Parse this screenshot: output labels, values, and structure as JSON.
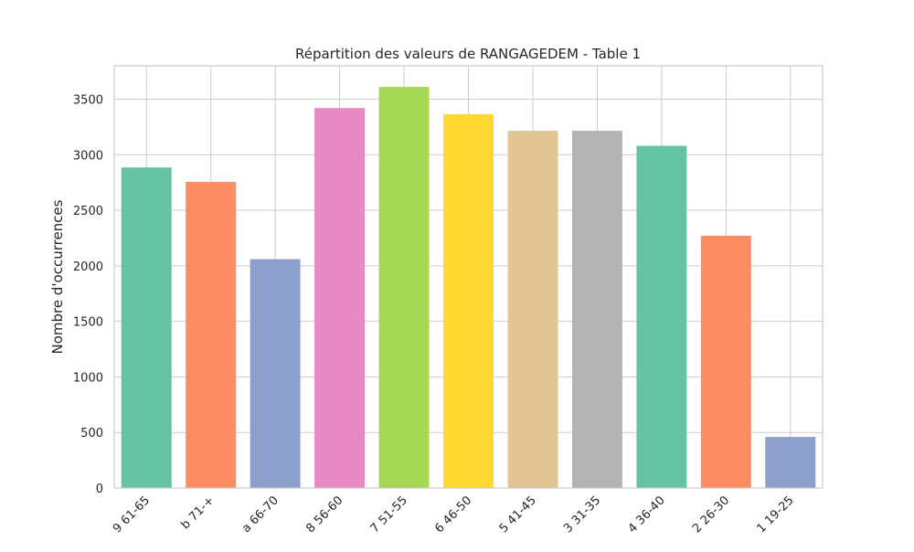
{
  "chart_data": {
    "type": "bar",
    "title": "Répartition des valeurs de RANGAGEDEM - Table 1",
    "xlabel": "",
    "ylabel": "Nombre d'occurrences",
    "categories": [
      "9 61-65",
      "b 71-+",
      "a 66-70",
      "8 56-60",
      "7 51-55",
      "6 46-50",
      "5 41-45",
      "3 31-35",
      "4 36-40",
      "2 26-30",
      "1 19-25"
    ],
    "values": [
      2885,
      2755,
      2060,
      3420,
      3610,
      3365,
      3215,
      3215,
      3080,
      2270,
      460
    ],
    "colors": [
      "#66c2a5",
      "#fc8d62",
      "#8da0cb",
      "#e78ac3",
      "#a6d854",
      "#ffd92f",
      "#e5c494",
      "#b3b3b3",
      "#66c2a5",
      "#fc8d62",
      "#8da0cb"
    ],
    "ylim": [
      0,
      3800
    ],
    "yticks": [
      0,
      500,
      1000,
      1500,
      2000,
      2500,
      3000,
      3500
    ],
    "grid": true,
    "legend": "none"
  }
}
